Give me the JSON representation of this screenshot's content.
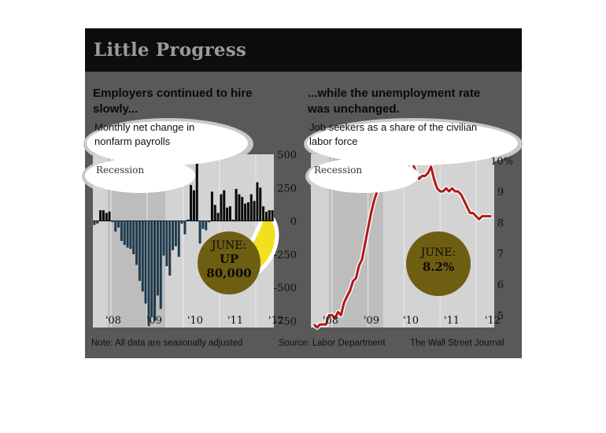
{
  "title": "Little Progress",
  "left": {
    "heading": "Employers continued to hire slowly...",
    "heading_l1": "Employers continued to hire",
    "heading_l2": "slowly...",
    "sub_l1": "Monthly net change in",
    "sub_l2": "nonfarm payrolls",
    "recession": "Recession",
    "callout_l1": "JUNE:",
    "callout_l2": "UP",
    "callout_l3": "80,000"
  },
  "right": {
    "heading_l1": "...while the unemployment rate",
    "heading_l2": "was unchanged.",
    "sub_l1": "Job seekers as a share of the civilian",
    "sub_l2": "labor force",
    "recession": "Recession",
    "callout_l1": "JUNE:",
    "callout_l2": "8.2%"
  },
  "footer": {
    "note": "Note: All data are seasonally adjusted",
    "source": "Source: Labor Department",
    "publisher": "The Wall Street Journal"
  },
  "colors": {
    "bars_positive": "#0a0a0a",
    "bars_negative": "#1f3b4d",
    "line": "#b01818",
    "callout": "#6e5e12",
    "highlight": "#f2e020"
  },
  "chart_data": [
    {
      "type": "bar",
      "title": "Employers continued to hire slowly...",
      "subtitle": "Monthly net change in nonfarm payrolls",
      "ylim": [
        -800,
        500
      ],
      "y_ticks": [
        "500",
        "250",
        "0",
        "-250",
        "-500",
        "-750"
      ],
      "x_ticks": [
        "'08",
        "'09",
        "'10",
        "'11",
        "'12"
      ],
      "recession": {
        "start": "2007-12",
        "end": "2009-06"
      },
      "months_start": "2007-07",
      "values": [
        -30,
        -20,
        80,
        80,
        60,
        70,
        -10,
        -80,
        -50,
        -150,
        -180,
        -200,
        -210,
        -250,
        -330,
        -450,
        -530,
        -620,
        -790,
        -720,
        -750,
        -560,
        -660,
        -260,
        -340,
        -410,
        -220,
        -190,
        -270,
        -20,
        -100,
        10,
        270,
        230,
        470,
        -170,
        -60,
        -70,
        -10,
        220,
        120,
        60,
        200,
        230,
        100,
        110,
        10,
        240,
        200,
        180,
        130,
        140,
        200,
        150,
        290,
        250,
        110,
        70,
        80,
        80
      ]
    },
    {
      "type": "line",
      "title": "...while the unemployment rate was unchanged.",
      "subtitle": "Job seekers as a share of the civilian labor force",
      "unit": "%",
      "ylim": [
        4.6,
        10.2
      ],
      "y_ticks": [
        "10%",
        "9",
        "8",
        "7",
        "6",
        "5"
      ],
      "x_ticks": [
        "'08",
        "'09",
        "'10",
        "'11",
        "'12"
      ],
      "recession": {
        "start": "2007-12",
        "end": "2009-06"
      },
      "months_start": "2007-07",
      "values": [
        4.7,
        4.6,
        4.7,
        4.7,
        4.7,
        5.0,
        5.0,
        4.9,
        5.1,
        5.0,
        5.4,
        5.6,
        5.8,
        6.1,
        6.2,
        6.6,
        6.8,
        7.3,
        7.8,
        8.3,
        8.7,
        9.0,
        9.4,
        9.5,
        9.5,
        9.7,
        9.8,
        10.0,
        9.9,
        9.9,
        9.8,
        9.8,
        9.9,
        9.9,
        9.6,
        9.4,
        9.5,
        9.5,
        9.6,
        9.8,
        9.4,
        9.1,
        9.0,
        9.0,
        9.1,
        9.0,
        9.1,
        9.0,
        9.0,
        8.9,
        8.7,
        8.5,
        8.3,
        8.3,
        8.2,
        8.1,
        8.2,
        8.2,
        8.2,
        8.2
      ]
    }
  ]
}
